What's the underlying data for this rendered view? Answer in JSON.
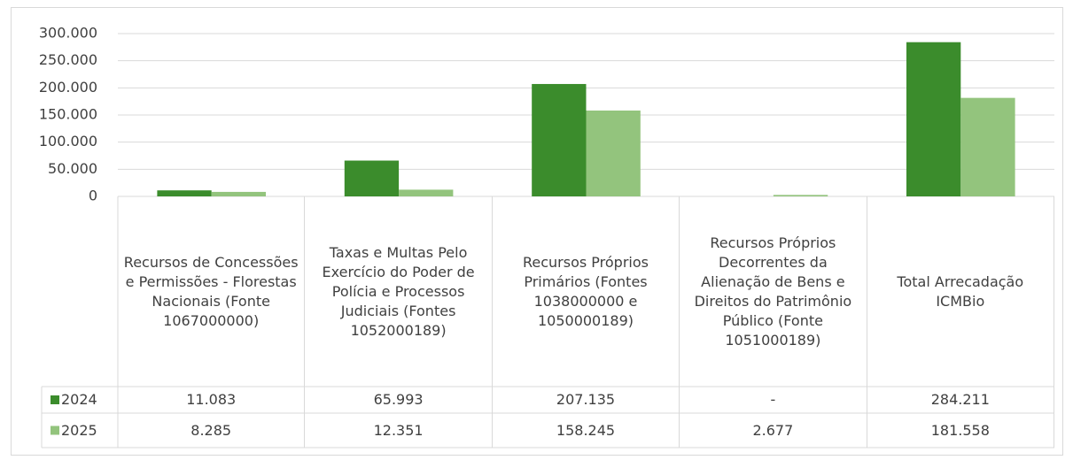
{
  "chart_data": {
    "type": "bar",
    "categories": [
      "Recursos de Concessões e Permissões - Florestas Nacionais (Fonte 1067000000)",
      "Taxas e Multas Pelo Exercício do Poder de Polícia e Processos Judiciais (Fontes 1052000189)",
      "Recursos Próprios Primários (Fontes 1038000000 e 1050000189)",
      "Recursos Próprios Decorrentes da Alienação de Bens e Direitos do Patrimônio Público (Fonte 1051000189)",
      "Total Arrecadação ICMBio"
    ],
    "series": [
      {
        "name": "2024",
        "color": "#3b8c2c",
        "values": [
          11083,
          65993,
          207135,
          null,
          284211
        ],
        "value_labels": [
          "11.083",
          "65.993",
          "207.135",
          "-",
          "284.211"
        ]
      },
      {
        "name": "2025",
        "color": "#93c47d",
        "values": [
          8285,
          12351,
          158245,
          2677,
          181558
        ],
        "value_labels": [
          "8.285",
          "12.351",
          "158.245",
          "2.677",
          "181.558"
        ]
      }
    ],
    "ylim": [
      0,
      300000
    ],
    "yticks": [
      0,
      {
        "value": 50000,
        "label": "50.000"
      },
      {
        "value": 100000,
        "label": "100.000"
      },
      {
        "value": 150000,
        "label": "150.000"
      },
      {
        "value": 200000,
        "label": "200.000"
      },
      {
        "value": 250000,
        "label": "250.000"
      },
      {
        "value": 300000,
        "label": "300.000"
      }
    ],
    "grid": true,
    "data_table": true
  }
}
